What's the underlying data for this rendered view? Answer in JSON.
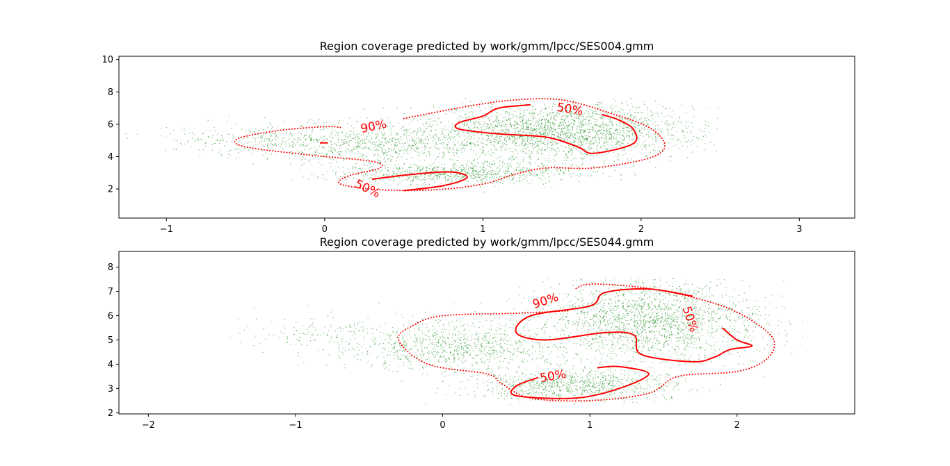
{
  "chart_data": [
    {
      "type": "scatter",
      "title": "Region coverage predicted by work/gmm/lpcc/SES004.gmm",
      "xlabel": "",
      "ylabel": "",
      "xlim": [
        -1.3,
        3.35
      ],
      "ylim": [
        0.2,
        10.2
      ],
      "xticks": [
        "−1",
        "0",
        "1",
        "2",
        "3"
      ],
      "xtick_values": [
        -1,
        0,
        1,
        2,
        3
      ],
      "yticks": [
        "2",
        "4",
        "6",
        "8",
        "10"
      ],
      "ytick_values": [
        2,
        4,
        6,
        8,
        10
      ],
      "grid": false,
      "point_color": "#008000",
      "contour_color": "#ff0000",
      "clusters": [
        {
          "cx": 1.5,
          "cy": 5.6,
          "sx": 0.42,
          "sy": 0.85,
          "n": 2200
        },
        {
          "cx": 0.85,
          "cy": 3.0,
          "sx": 0.38,
          "sy": 0.35,
          "n": 900
        },
        {
          "cx": 0.3,
          "cy": 4.8,
          "sx": 0.45,
          "sy": 0.6,
          "n": 900
        },
        {
          "cx": -0.5,
          "cy": 5.1,
          "sx": 0.3,
          "sy": 0.4,
          "n": 160
        }
      ],
      "x_clip": [
        -1.3,
        2.5
      ],
      "y_clip": [
        1.7,
        7.6
      ],
      "contours": [
        {
          "level": "90%",
          "style": "dotted",
          "points": [
            [
              0.1,
              5.8
            ],
            [
              0.0,
              5.85
            ],
            [
              -0.3,
              5.6
            ],
            [
              -0.55,
              5.1
            ],
            [
              -0.5,
              4.6
            ],
            [
              -0.1,
              4.1
            ],
            [
              0.3,
              3.7
            ],
            [
              0.35,
              3.3
            ],
            [
              0.15,
              2.8
            ],
            [
              0.1,
              2.3
            ],
            [
              0.35,
              1.95
            ],
            [
              0.7,
              1.95
            ],
            [
              1.0,
              2.3
            ],
            [
              1.2,
              2.9
            ],
            [
              1.4,
              3.3
            ],
            [
              1.7,
              3.3
            ],
            [
              2.05,
              3.9
            ],
            [
              2.15,
              4.7
            ],
            [
              2.05,
              5.8
            ],
            [
              1.8,
              6.7
            ],
            [
              1.5,
              7.5
            ],
            [
              1.2,
              7.5
            ],
            [
              0.9,
              7.1
            ],
            [
              0.5,
              6.35
            ]
          ]
        },
        {
          "level": "50%",
          "style": "solid",
          "points": [
            [
              1.3,
              7.2
            ],
            [
              1.1,
              7.0
            ],
            [
              1.0,
              6.5
            ],
            [
              0.85,
              6.1
            ],
            [
              0.85,
              5.7
            ],
            [
              1.1,
              5.4
            ],
            [
              1.4,
              5.2
            ],
            [
              1.6,
              4.6
            ],
            [
              1.7,
              4.2
            ],
            [
              1.95,
              4.8
            ],
            [
              1.95,
              5.7
            ],
            [
              1.85,
              6.3
            ],
            [
              1.75,
              6.6
            ]
          ]
        },
        {
          "level": "50%",
          "style": "solid",
          "points": [
            [
              0.3,
              2.6
            ],
            [
              0.55,
              2.9
            ],
            [
              0.8,
              3.05
            ],
            [
              0.9,
              2.7
            ],
            [
              0.75,
              2.2
            ],
            [
              0.5,
              1.9
            ]
          ]
        },
        {
          "level": "50%",
          "style": "solid",
          "points": [
            [
              -0.03,
              4.85
            ],
            [
              0.02,
              4.85
            ]
          ]
        }
      ],
      "contour_labels": [
        {
          "text": "90%",
          "x": 0.31,
          "y": 5.85,
          "angle": -12
        },
        {
          "text": "50%",
          "x": 1.55,
          "y": 6.9,
          "angle": 10
        },
        {
          "text": "50%",
          "x": 0.27,
          "y": 2.0,
          "angle": 25
        }
      ]
    },
    {
      "type": "scatter",
      "title": "Region coverage predicted by work/gmm/lpcc/SES044.gmm",
      "xlabel": "",
      "ylabel": "",
      "xlim": [
        -2.2,
        2.8
      ],
      "ylim": [
        1.95,
        8.65
      ],
      "xticks": [
        "−2",
        "−1",
        "0",
        "1",
        "2"
      ],
      "xtick_values": [
        -2,
        -1,
        0,
        1,
        2
      ],
      "yticks": [
        "2",
        "3",
        "4",
        "5",
        "6",
        "7",
        "8"
      ],
      "ytick_values": [
        2,
        3,
        4,
        5,
        6,
        7,
        8
      ],
      "grid": false,
      "point_color": "#008000",
      "contour_color": "#ff0000",
      "clusters": [
        {
          "cx": 1.4,
          "cy": 5.8,
          "sx": 0.38,
          "sy": 0.85,
          "n": 2000
        },
        {
          "cx": 0.9,
          "cy": 3.1,
          "sx": 0.35,
          "sy": 0.35,
          "n": 900
        },
        {
          "cx": 0.1,
          "cy": 4.7,
          "sx": 0.35,
          "sy": 0.5,
          "n": 900
        },
        {
          "cx": -0.8,
          "cy": 5.3,
          "sx": 0.35,
          "sy": 0.4,
          "n": 160
        }
      ],
      "x_clip": [
        -1.45,
        2.5
      ],
      "y_clip": [
        2.3,
        7.55
      ],
      "contours": [
        {
          "level": "90%",
          "style": "dotted",
          "points": [
            [
              0.85,
              6.2
            ],
            [
              0.5,
              6.1
            ],
            [
              0.0,
              6.0
            ],
            [
              -0.2,
              5.6
            ],
            [
              -0.3,
              5.0
            ],
            [
              -0.1,
              4.0
            ],
            [
              0.3,
              3.6
            ],
            [
              0.4,
              3.2
            ],
            [
              0.6,
              2.6
            ],
            [
              1.0,
              2.5
            ],
            [
              1.4,
              2.8
            ],
            [
              1.6,
              3.5
            ],
            [
              2.0,
              3.7
            ],
            [
              2.2,
              4.2
            ],
            [
              2.25,
              5.0
            ],
            [
              2.1,
              5.8
            ],
            [
              1.9,
              6.4
            ],
            [
              1.6,
              6.9
            ],
            [
              1.3,
              7.2
            ],
            [
              1.0,
              7.3
            ],
            [
              0.9,
              7.1
            ]
          ]
        },
        {
          "level": "50%",
          "style": "solid",
          "points": [
            [
              1.7,
              6.8
            ],
            [
              1.4,
              7.1
            ],
            [
              1.1,
              6.95
            ],
            [
              1.0,
              6.4
            ],
            [
              0.6,
              6.0
            ],
            [
              0.5,
              5.3
            ],
            [
              0.7,
              5.0
            ],
            [
              1.1,
              5.3
            ],
            [
              1.3,
              5.2
            ],
            [
              1.35,
              4.4
            ],
            [
              1.7,
              4.1
            ],
            [
              1.85,
              4.3
            ],
            [
              1.95,
              4.6
            ],
            [
              2.1,
              4.75
            ],
            [
              2.0,
              5.0
            ],
            [
              1.9,
              5.5
            ]
          ]
        },
        {
          "level": "50%",
          "style": "solid",
          "points": [
            [
              0.65,
              3.45
            ],
            [
              0.5,
              3.1
            ],
            [
              0.5,
              2.7
            ],
            [
              0.9,
              2.6
            ],
            [
              1.2,
              3.0
            ],
            [
              1.4,
              3.6
            ],
            [
              1.2,
              3.9
            ],
            [
              1.05,
              3.85
            ]
          ]
        }
      ],
      "contour_labels": [
        {
          "text": "90%",
          "x": 0.7,
          "y": 6.6,
          "angle": -18
        },
        {
          "text": "50%",
          "x": 1.68,
          "y": 5.85,
          "angle": 72
        },
        {
          "text": "50%",
          "x": 0.75,
          "y": 3.5,
          "angle": -10
        }
      ]
    }
  ]
}
